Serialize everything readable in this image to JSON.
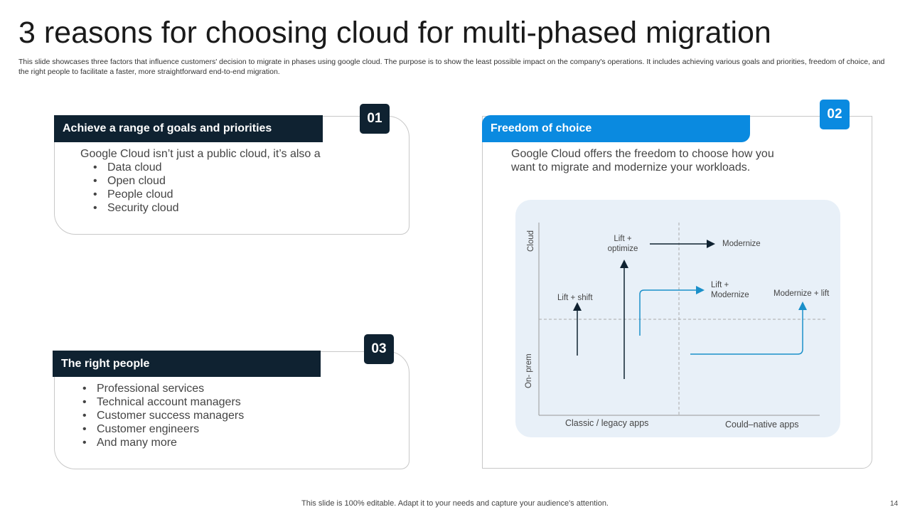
{
  "title": "3 reasons for choosing cloud for multi-phased migration",
  "subtitle": "This slide showcases three factors that influence customers' decision to migrate in phases using google cloud. The purpose is to show the least possible impact on the company's operations. It includes achieving various goals and priorities, freedom of choice, and the right people to facilitate a faster, more straightforward end-to-end migration.",
  "cards": [
    {
      "number": "01",
      "heading": "Achieve a range of goals and priorities",
      "intro": "Google Cloud isn’t just a public cloud, it’s also a",
      "items": [
        "Data cloud",
        "Open cloud",
        "People cloud",
        "Security cloud"
      ]
    },
    {
      "number": "02",
      "heading": "Freedom of choice",
      "intro": "Google Cloud offers the freedom to choose how you want to migrate and modernize your workloads."
    },
    {
      "number": "03",
      "heading": "The right people",
      "items": [
        "Professional services",
        "Technical account managers",
        "Customer success managers",
        "Customer engineers",
        "And many more"
      ]
    }
  ],
  "diagram": {
    "y_axis": {
      "top": "Cloud",
      "bottom": "On- prem"
    },
    "x_axis": {
      "left": "Classic / legacy apps",
      "right": "Could–native  apps"
    },
    "labels": {
      "lift_shift": "Lift + shift",
      "lift_optimize": "Lift + optimize",
      "modernize": "Modernize",
      "lift_modernize": "Lift + Modernize",
      "modernize_lift": "Modernize + lift"
    }
  },
  "colors": {
    "dark": "#0f2231",
    "accent": "#0a8ae0",
    "diagram_bg": "#e8f0f8",
    "blue_arrow": "#1a8fc9"
  },
  "footer": "This slide is 100% editable. Adapt it to your needs and capture your audience's attention.",
  "page_number": "14"
}
